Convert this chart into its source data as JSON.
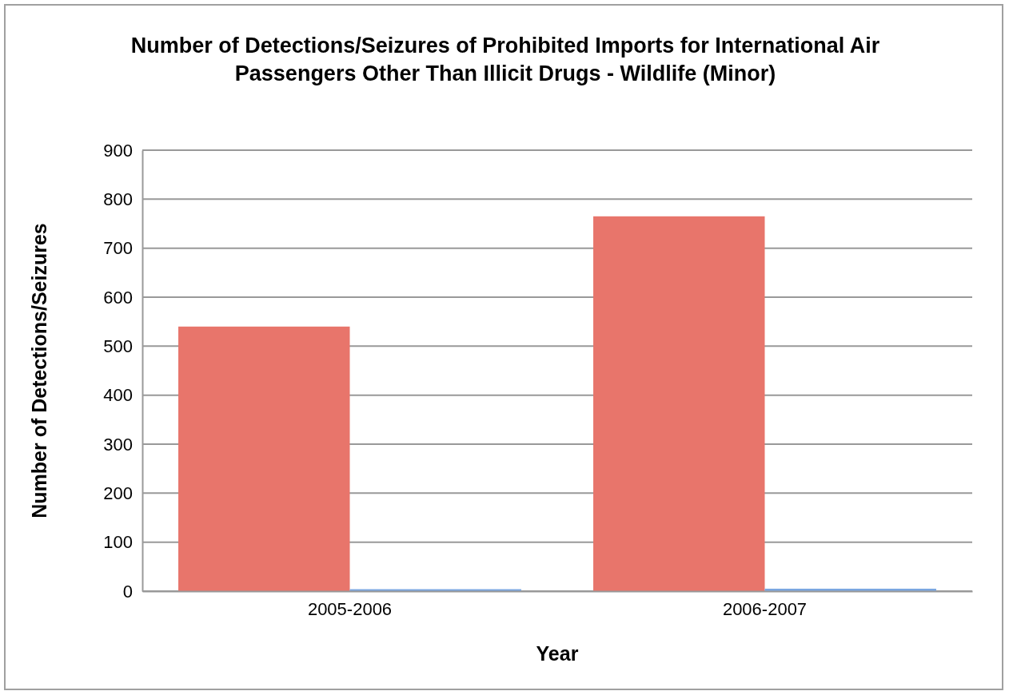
{
  "chart_data": {
    "type": "bar",
    "title": "Number of Detections/Seizures of Prohibited Imports for International Air Passengers Other Than Illicit Drugs - Wildlife (Minor)",
    "xlabel": "Year",
    "ylabel": "Number of Detections/Seizures",
    "categories": [
      "2005-2006",
      "2006-2007"
    ],
    "series": [
      {
        "color": "#e8756b",
        "values": [
          540,
          765
        ]
      },
      {
        "color": "#7aa6e0",
        "values": [
          4,
          5
        ]
      }
    ],
    "ylim": [
      0,
      900
    ],
    "yticks": [
      0,
      100,
      200,
      300,
      400,
      500,
      600,
      700,
      800,
      900
    ],
    "grid": "y"
  }
}
